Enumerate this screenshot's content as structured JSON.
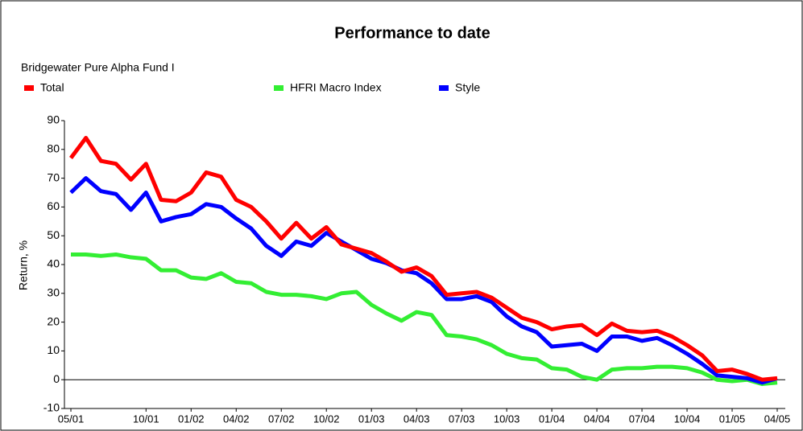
{
  "chart_data": {
    "type": "line",
    "title": "Performance to date",
    "subtitle": "Bridgewater Pure Alpha Fund I",
    "ylabel": "Return, %",
    "categories": [
      "05/01",
      null,
      null,
      null,
      null,
      "10/01",
      null,
      null,
      "01/02",
      null,
      null,
      "04/02",
      null,
      null,
      "07/02",
      null,
      null,
      "10/02",
      null,
      null,
      "01/03",
      null,
      null,
      "04/03",
      null,
      null,
      "07/03",
      null,
      null,
      "10/03",
      null,
      null,
      "01/04",
      null,
      null,
      "04/04",
      null,
      null,
      "07/04",
      null,
      null,
      "10/04",
      null,
      null,
      "01/05",
      null,
      null,
      "04/05"
    ],
    "series": [
      {
        "name": "Total",
        "color": "#ff0000",
        "values": [
          77,
          84,
          76,
          75,
          69.5,
          75,
          62.5,
          62,
          65,
          72,
          70.5,
          62.5,
          60,
          55,
          49,
          54.5,
          49,
          53,
          47,
          45.5,
          44,
          41,
          37.5,
          39,
          36,
          29.5,
          30,
          30.5,
          28.5,
          25,
          21.5,
          20,
          17.5,
          18.5,
          19,
          15.5,
          19.5,
          17,
          16.5,
          17,
          15,
          12,
          8.5,
          3,
          3.5,
          2,
          0,
          0.5
        ]
      },
      {
        "name": "HFRI Macro Index",
        "color": "#33ee33",
        "values": [
          43.5,
          43.5,
          43,
          43.5,
          42.5,
          42,
          38,
          38,
          35.5,
          35,
          37,
          34,
          33.5,
          30.5,
          29.5,
          29.5,
          29,
          28,
          30,
          30.5,
          26,
          23,
          20.5,
          23.5,
          22.5,
          15.5,
          15,
          14,
          12,
          9,
          7.5,
          7,
          4,
          3.5,
          1,
          0,
          3.5,
          4,
          4,
          4.5,
          4.5,
          4,
          2.5,
          0,
          -0.5,
          0,
          -1.5,
          -1
        ]
      },
      {
        "name": "Style",
        "color": "#0000ff",
        "values": [
          65,
          70,
          65.5,
          64.5,
          59,
          65,
          55,
          56.5,
          57.5,
          61,
          60,
          56,
          52.5,
          46.5,
          43,
          48,
          46.5,
          51,
          48,
          45,
          42,
          40.5,
          38,
          37,
          33.5,
          28,
          28,
          29,
          27,
          22,
          18.5,
          16.5,
          11.5,
          12,
          12.5,
          10,
          15,
          15,
          13.5,
          14.5,
          12,
          9,
          5.5,
          1.5,
          1,
          0.5,
          -1,
          0.5
        ]
      }
    ],
    "ylim": [
      -10,
      90
    ],
    "yticks": [
      -10,
      0,
      10,
      20,
      30,
      40,
      50,
      60,
      70,
      80,
      90
    ]
  }
}
